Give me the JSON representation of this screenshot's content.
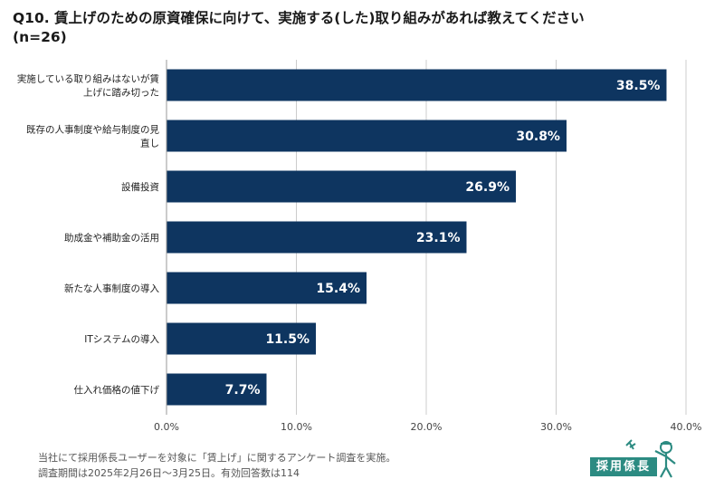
{
  "title_line1": "Q10. 賃上げのための原資確保に向けて、実施する(した)取り組みがあれば教えてください",
  "title_line2": "(n=26)",
  "chart_data": {
    "type": "bar",
    "orientation": "horizontal",
    "categories": [
      "実施している取り組みはないが賃上げに踏み切った",
      "既存の人事制度や給与制度の見直し",
      "設備投資",
      "助成金や補助金の活用",
      "新たな人事制度の導入",
      "ITシステムの導入",
      "仕入れ価格の値下げ"
    ],
    "category_lines": [
      [
        "実施している取り組みはないが賃",
        "上げに踏み切った"
      ],
      [
        "既存の人事制度や給与制度の見",
        "直し"
      ],
      [
        "設備投資"
      ],
      [
        "助成金や補助金の活用"
      ],
      [
        "新たな人事制度の導入"
      ],
      [
        "ITシステムの導入"
      ],
      [
        "仕入れ価格の値下げ"
      ]
    ],
    "values": [
      38.5,
      30.8,
      26.9,
      23.1,
      15.4,
      11.5,
      7.7
    ],
    "value_labels": [
      "38.5%",
      "30.8%",
      "26.9%",
      "23.1%",
      "15.4%",
      "11.5%",
      "7.7%"
    ],
    "xlim": [
      0,
      40
    ],
    "ticks": [
      0,
      10,
      20,
      30,
      40
    ],
    "tick_labels": [
      "0.0%",
      "10.0%",
      "20.0%",
      "30.0%",
      "40.0%"
    ],
    "grid": true,
    "bar_color": "#0e3560",
    "label_color": "#ffffff",
    "grid_color": "#cccccc"
  },
  "footnote": {
    "line1": "当社にて採用係長ユーザーを対象に「賃上げ」に関するアンケート調査を実施。",
    "line2": "調査期間は2025年2月26日〜3月25日。有効回答数は114"
  },
  "logo": {
    "text": "採用係長",
    "color": "#2c8b82"
  }
}
